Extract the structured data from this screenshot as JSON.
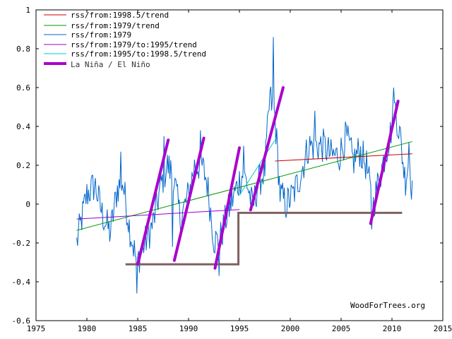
{
  "chart_data": {
    "type": "line",
    "title": "",
    "xlabel": "",
    "ylabel": "",
    "xlim": [
      1975,
      2015
    ],
    "ylim": [
      -0.6,
      1
    ],
    "x_ticks": [
      1975,
      1980,
      1985,
      1990,
      1995,
      2000,
      2005,
      2010,
      2015
    ],
    "y_ticks": [
      -0.6,
      -0.4,
      -0.2,
      0,
      0.2,
      0.4,
      0.6,
      0.8,
      1
    ],
    "x_tick_labels": [
      "1975",
      "1980",
      "1985",
      "1990",
      "1995",
      "2000",
      "2005",
      "2010",
      "2015"
    ],
    "y_tick_labels": [
      "-0.6",
      "-0.4",
      "-0.2",
      "0",
      "0.2",
      "0.4",
      "0.6",
      "0.8",
      "1"
    ],
    "legend_position": "top-left",
    "credit": "WoodForTrees.org",
    "series": [
      {
        "name": "rss/from:1998.5/trend",
        "color": "#cc0000",
        "kind": "line",
        "points": [
          [
            1998.5,
            0.222
          ],
          [
            2012.0,
            0.259
          ]
        ]
      },
      {
        "name": "rss/from:1979/trend",
        "color": "#009900",
        "kind": "line",
        "points": [
          [
            1979.0,
            -0.135
          ],
          [
            2012.0,
            0.322
          ]
        ]
      },
      {
        "name": "rss/from:1979",
        "color": "#0066cc",
        "kind": "noisy",
        "anchors": [
          [
            1979.0,
            -0.2
          ],
          [
            1980.0,
            0.05
          ],
          [
            1980.8,
            0.1
          ],
          [
            1981.5,
            -0.05
          ],
          [
            1982.3,
            -0.15
          ],
          [
            1983.0,
            0.08
          ],
          [
            1983.5,
            0.12
          ],
          [
            1984.2,
            -0.12
          ],
          [
            1984.9,
            -0.3
          ],
          [
            1985.7,
            -0.2
          ],
          [
            1986.5,
            -0.1
          ],
          [
            1987.3,
            0.1
          ],
          [
            1987.9,
            0.2
          ],
          [
            1988.5,
            0.15
          ],
          [
            1989.2,
            -0.08
          ],
          [
            1990.0,
            0.05
          ],
          [
            1990.6,
            0.2
          ],
          [
            1991.3,
            0.2
          ],
          [
            1991.8,
            0.12
          ],
          [
            1992.5,
            -0.18
          ],
          [
            1993.0,
            -0.2
          ],
          [
            1993.8,
            -0.05
          ],
          [
            1994.5,
            0.05
          ],
          [
            1995.2,
            0.15
          ],
          [
            1995.7,
            0.12
          ],
          [
            1996.3,
            -0.02
          ],
          [
            1996.8,
            0.1
          ],
          [
            1997.5,
            0.18
          ],
          [
            1998.0,
            0.55
          ],
          [
            1998.5,
            0.45
          ],
          [
            1999.0,
            0.05
          ],
          [
            1999.6,
            0.0
          ],
          [
            2000.3,
            0.05
          ],
          [
            2001.0,
            0.15
          ],
          [
            2001.8,
            0.3
          ],
          [
            2002.5,
            0.3
          ],
          [
            2003.3,
            0.3
          ],
          [
            2004.0,
            0.25
          ],
          [
            2004.8,
            0.25
          ],
          [
            2005.5,
            0.35
          ],
          [
            2006.2,
            0.22
          ],
          [
            2006.8,
            0.28
          ],
          [
            2007.5,
            0.2
          ],
          [
            2008.1,
            -0.02
          ],
          [
            2008.6,
            0.1
          ],
          [
            2009.3,
            0.25
          ],
          [
            2009.8,
            0.35
          ],
          [
            2010.3,
            0.5
          ],
          [
            2010.8,
            0.35
          ],
          [
            2011.3,
            0.12
          ],
          [
            2011.7,
            0.25
          ],
          [
            2012.0,
            0.05
          ]
        ],
        "peaks": [
          [
            1983.3,
            0.27
          ],
          [
            1984.9,
            -0.46
          ],
          [
            1987.6,
            0.35
          ],
          [
            1988.4,
            -0.22
          ],
          [
            1991.2,
            0.38
          ],
          [
            1993.0,
            -0.37
          ],
          [
            1995.4,
            0.3
          ],
          [
            1998.3,
            0.86
          ],
          [
            1999.6,
            -0.07
          ],
          [
            2002.4,
            0.48
          ],
          [
            2008.0,
            -0.13
          ],
          [
            2010.2,
            0.6
          ],
          [
            2011.7,
            0.32
          ]
        ],
        "amplitude": 0.09
      },
      {
        "name": "rss/from:1979/to:1995/trend",
        "color": "#9900cc",
        "kind": "line",
        "points": [
          [
            1979.0,
            -0.077
          ],
          [
            1995.0,
            -0.028
          ]
        ]
      },
      {
        "name": "rss/from:1995/to:1998.5/trend",
        "color": "#00cccc",
        "kind": "line",
        "points": [
          [
            1995.0,
            0.045
          ],
          [
            1998.5,
            0.33
          ]
        ]
      }
    ],
    "la_nina_el_nino": {
      "name": "La Niña / El Niño",
      "color": "#aa00cc",
      "segments": [
        [
          [
            1985.0,
            -0.31
          ],
          [
            1988.0,
            0.33
          ]
        ],
        [
          [
            1988.6,
            -0.29
          ],
          [
            1991.5,
            0.34
          ]
        ],
        [
          [
            1992.6,
            -0.33
          ],
          [
            1995.0,
            0.29
          ]
        ],
        [
          [
            1996.1,
            -0.03
          ],
          [
            1999.3,
            0.6
          ]
        ],
        [
          [
            2007.9,
            -0.1
          ],
          [
            2010.6,
            0.53
          ]
        ]
      ]
    },
    "step_line": {
      "color": "#7f6161",
      "points": [
        [
          1983.8,
          -0.31
        ],
        [
          1994.9,
          -0.31
        ],
        [
          1994.9,
          -0.045
        ],
        [
          2011.0,
          -0.045
        ]
      ]
    }
  }
}
